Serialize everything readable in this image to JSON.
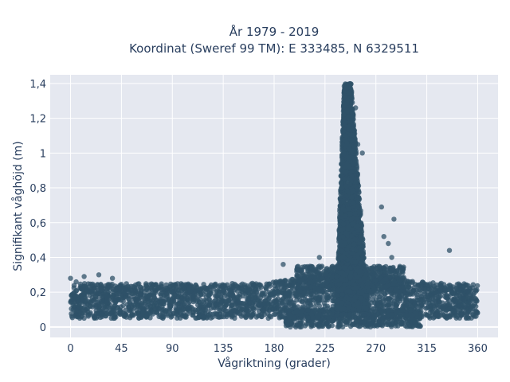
{
  "chart_data": {
    "type": "scatter",
    "title": "År 1979 - 2019",
    "subtitle": "Koordinat (Sweref 99 TM): E 333485, N 6329511",
    "xlabel": "Vågriktning (grader)",
    "ylabel": "Signifikant våghöjd (m)",
    "xlim": [
      -18,
      378
    ],
    "ylim": [
      -0.06,
      1.45
    ],
    "xticks": [
      0,
      45,
      90,
      135,
      180,
      225,
      270,
      315,
      360
    ],
    "xtick_labels": [
      "0",
      "45",
      "90",
      "135",
      "180",
      "225",
      "270",
      "315",
      "360"
    ],
    "yticks": [
      0,
      0.2,
      0.4,
      0.6,
      0.8,
      1,
      1.2,
      1.4
    ],
    "ytick_labels": [
      "0",
      "0,2",
      "0,4",
      "0,6",
      "0,8",
      "1",
      "1,2",
      "1,4"
    ],
    "grid": true,
    "legend": false,
    "marker_color": "#2f5168",
    "plot_background": "#e5e8f0",
    "distribution": {
      "baseline": {
        "x_range": [
          0,
          360
        ],
        "typical_min": 0.05,
        "typical_max": 0.25
      },
      "peak": {
        "x_center": 245,
        "x_width": 12,
        "max": 1.4
      },
      "notable_points": [
        {
          "x": 335,
          "y": 0.44
        },
        {
          "x": 286,
          "y": 0.62
        },
        {
          "x": 275,
          "y": 0.69
        },
        {
          "x": 277,
          "y": 0.52
        },
        {
          "x": 281,
          "y": 0.48
        },
        {
          "x": 284,
          "y": 0.4
        },
        {
          "x": 252,
          "y": 1.26
        },
        {
          "x": 254,
          "y": 1.05
        },
        {
          "x": 258,
          "y": 1.0
        },
        {
          "x": 240,
          "y": 0.8
        },
        {
          "x": 220,
          "y": 0.4
        },
        {
          "x": 200,
          "y": 0.33
        },
        {
          "x": 188,
          "y": 0.36
        },
        {
          "x": 0,
          "y": 0.28
        },
        {
          "x": 5,
          "y": 0.26
        },
        {
          "x": 12,
          "y": 0.29
        },
        {
          "x": 25,
          "y": 0.3
        },
        {
          "x": 37,
          "y": 0.28
        }
      ]
    }
  }
}
